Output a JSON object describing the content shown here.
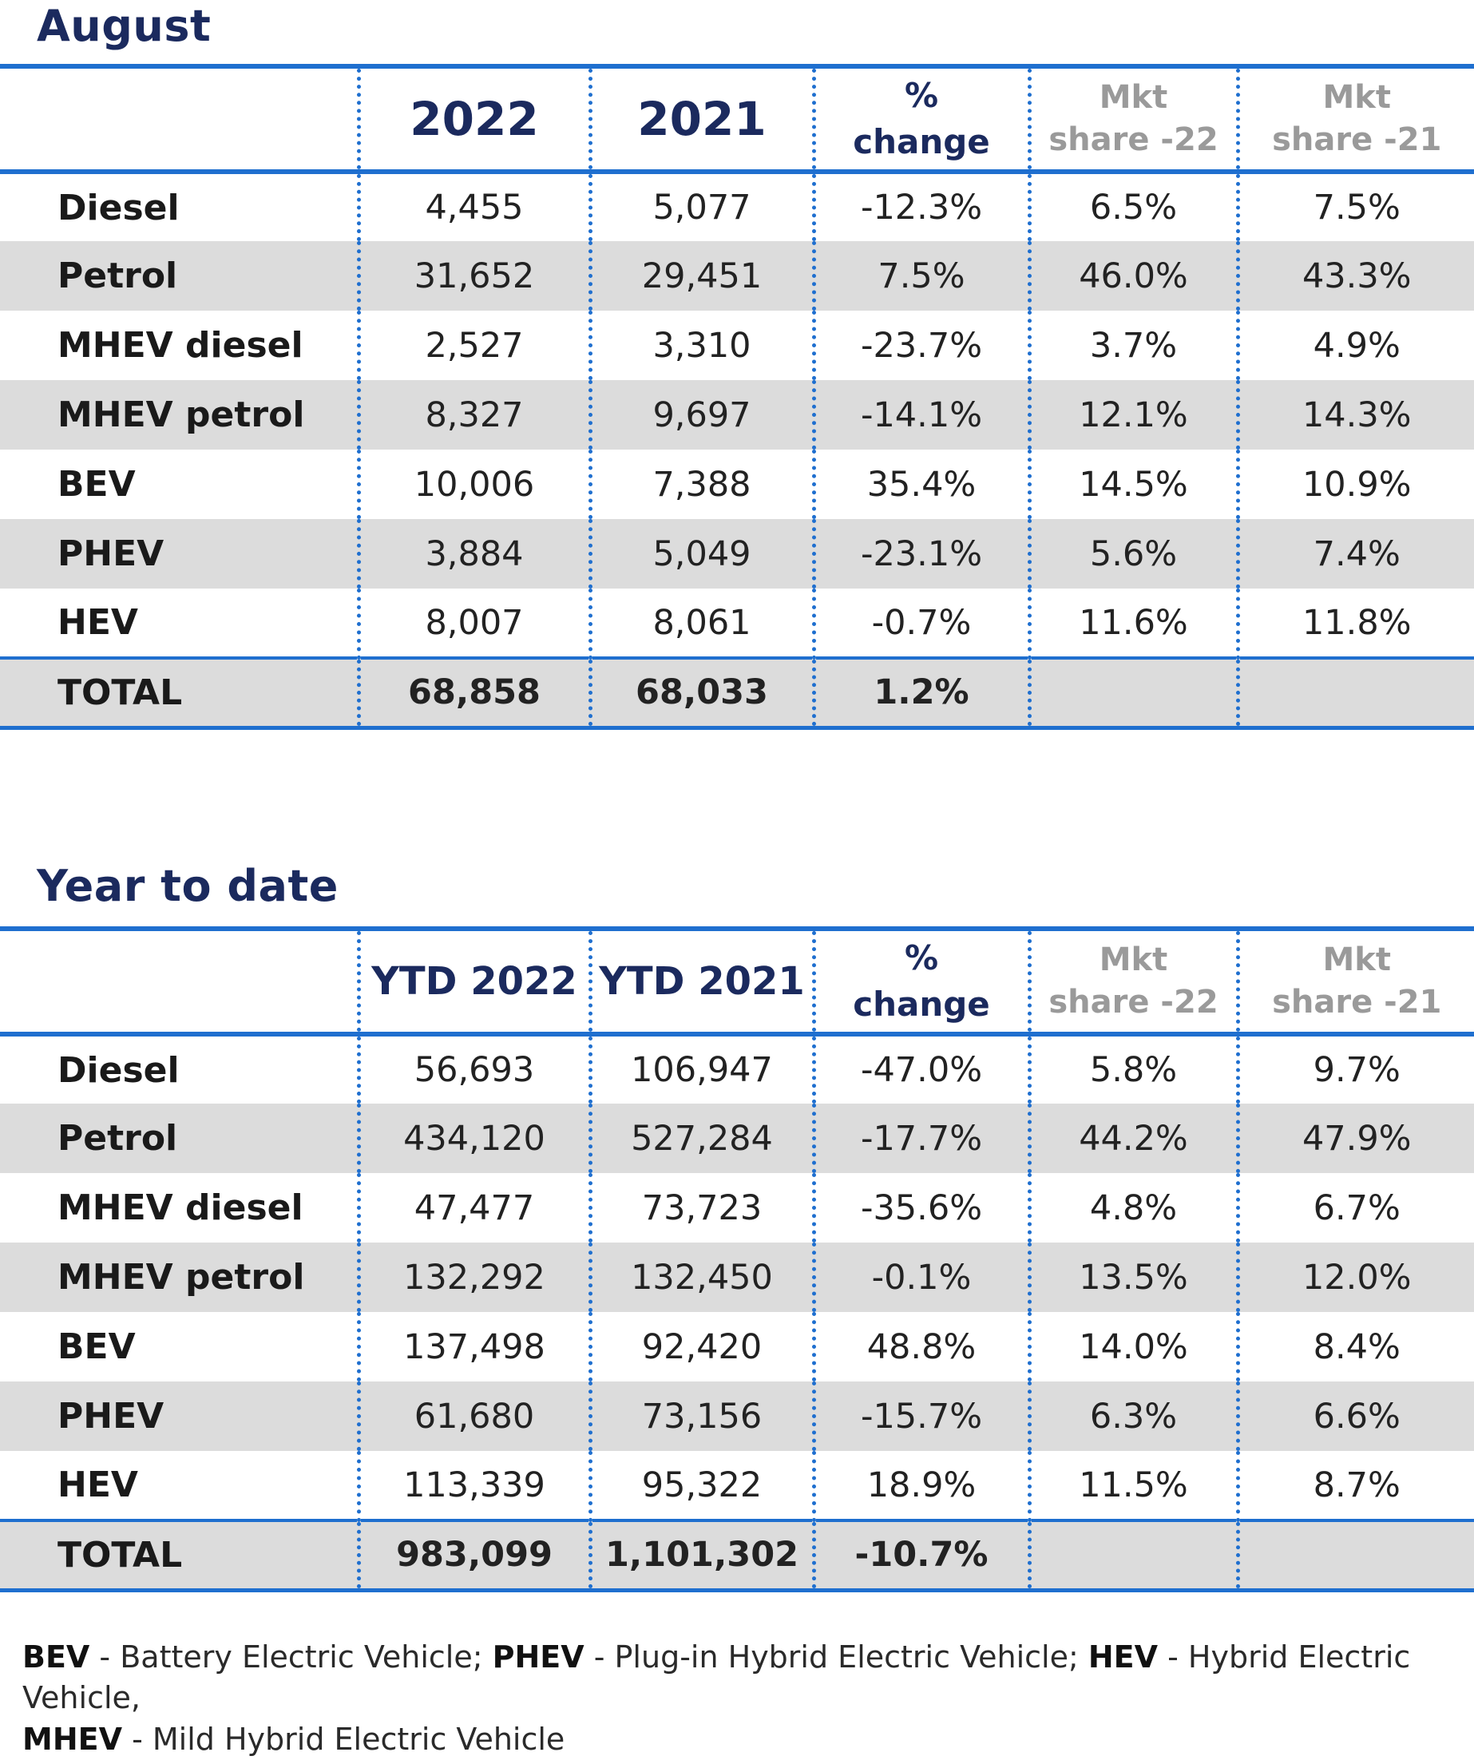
{
  "august": {
    "title": "August",
    "headers": {
      "c2022": "2022",
      "c2021": "2021",
      "pct_1": "%",
      "pct_2": "change",
      "mkt22_1": "Mkt",
      "mkt22_2": "share -22",
      "mkt21_1": "Mkt",
      "mkt21_2": "share -21"
    },
    "rows": [
      {
        "label": "Diesel",
        "v2022": "4,455",
        "v2021": "5,077",
        "change": "-12.3%",
        "share22": "6.5%",
        "share21": "7.5%"
      },
      {
        "label": "Petrol",
        "v2022": "31,652",
        "v2021": "29,451",
        "change": "7.5%",
        "share22": "46.0%",
        "share21": "43.3%"
      },
      {
        "label": "MHEV diesel",
        "v2022": "2,527",
        "v2021": "3,310",
        "change": "-23.7%",
        "share22": "3.7%",
        "share21": "4.9%"
      },
      {
        "label": "MHEV petrol",
        "v2022": "8,327",
        "v2021": "9,697",
        "change": "-14.1%",
        "share22": "12.1%",
        "share21": "14.3%"
      },
      {
        "label": "BEV",
        "v2022": "10,006",
        "v2021": "7,388",
        "change": "35.4%",
        "share22": "14.5%",
        "share21": "10.9%"
      },
      {
        "label": "PHEV",
        "v2022": "3,884",
        "v2021": "5,049",
        "change": "-23.1%",
        "share22": "5.6%",
        "share21": "7.4%"
      },
      {
        "label": "HEV",
        "v2022": "8,007",
        "v2021": "8,061",
        "change": "-0.7%",
        "share22": "11.6%",
        "share21": "11.8%"
      }
    ],
    "total": {
      "label": "TOTAL",
      "v2022": "68,858",
      "v2021": "68,033",
      "change": "1.2%",
      "share22": "",
      "share21": ""
    }
  },
  "ytd": {
    "title": "Year to date",
    "headers": {
      "c2022": "YTD 2022",
      "c2021": "YTD 2021",
      "pct_1": "%",
      "pct_2": "change",
      "mkt22_1": "Mkt",
      "mkt22_2": "share -22",
      "mkt21_1": "Mkt",
      "mkt21_2": "share -21"
    },
    "rows": [
      {
        "label": "Diesel",
        "v2022": "56,693",
        "v2021": "106,947",
        "change": "-47.0%",
        "share22": "5.8%",
        "share21": "9.7%"
      },
      {
        "label": "Petrol",
        "v2022": "434,120",
        "v2021": "527,284",
        "change": "-17.7%",
        "share22": "44.2%",
        "share21": "47.9%"
      },
      {
        "label": "MHEV diesel",
        "v2022": "47,477",
        "v2021": "73,723",
        "change": "-35.6%",
        "share22": "4.8%",
        "share21": "6.7%"
      },
      {
        "label": "MHEV petrol",
        "v2022": "132,292",
        "v2021": "132,450",
        "change": "-0.1%",
        "share22": "13.5%",
        "share21": "12.0%"
      },
      {
        "label": "BEV",
        "v2022": "137,498",
        "v2021": "92,420",
        "change": "48.8%",
        "share22": "14.0%",
        "share21": "8.4%"
      },
      {
        "label": "PHEV",
        "v2022": "61,680",
        "v2021": "73,156",
        "change": "-15.7%",
        "share22": "6.3%",
        "share21": "6.6%"
      },
      {
        "label": "HEV",
        "v2022": "113,339",
        "v2021": "95,322",
        "change": "18.9%",
        "share22": "11.5%",
        "share21": "8.7%"
      }
    ],
    "total": {
      "label": "TOTAL",
      "v2022": "983,099",
      "v2021": "1,101,302",
      "change": "-10.7%",
      "share22": "",
      "share21": ""
    }
  },
  "footnote": {
    "bev_abbr": "BEV",
    "bev_text": " - Battery Electric Vehicle; ",
    "phev_abbr": "PHEV",
    "phev_text": " - Plug-in Hybrid Electric Vehicle; ",
    "hev_abbr": "HEV",
    "hev_text": " - Hybrid Electric Vehicle,",
    "mhev_abbr": "MHEV",
    "mhev_text": " - Mild Hybrid Electric Vehicle"
  },
  "colors": {
    "title": "#1b2a5e",
    "rule": "#1f6fcf",
    "row_shade": "#dcdcdc",
    "mkt_header": "#9a9a9a"
  }
}
